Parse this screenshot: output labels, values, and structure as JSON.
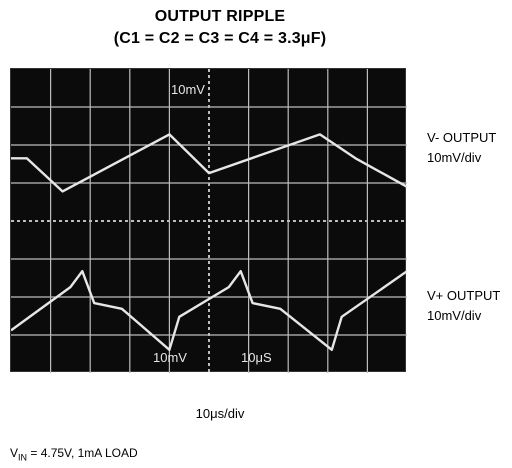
{
  "title_line1": "OUTPUT RIPPLE",
  "title_line2": "(C1 = C2 = C3 = C4 = 3.3μF)",
  "side_labels": {
    "v_neg_output": "V- OUTPUT",
    "v_neg_scale": "10mV/div",
    "v_pos_output": "V+ OUTPUT",
    "v_pos_scale": "10mV/div"
  },
  "x_scale": "10μs/div",
  "condition": {
    "v_prefix": "V",
    "v_sub": "IN",
    "rest": " = 4.75V, 1mA LOAD"
  },
  "chart_data": {
    "type": "line",
    "background": "#0b0b0b",
    "trace_color": "#e6e6e6",
    "grid": true,
    "grid_divisions": {
      "x": 10,
      "y": 8
    },
    "screen_annotations": [
      "10mV",
      "10mV",
      "10μS"
    ],
    "series": [
      {
        "name": "V- OUTPUT",
        "x_div": [
          0,
          0.4,
          1.3,
          4.0,
          5.0,
          7.8,
          8.7,
          10.0
        ],
        "y_div": [
          0.0,
          0.0,
          -1.45,
          1.05,
          -0.65,
          1.05,
          0.0,
          -1.25
        ]
      },
      {
        "name": "V+ OUTPUT",
        "x_div": [
          0,
          1.5,
          1.8,
          2.1,
          2.8,
          4.0,
          4.25,
          5.5,
          5.8,
          6.1,
          6.8,
          8.1,
          8.35,
          10.0
        ],
        "y_div": [
          -1.3,
          0.6,
          1.3,
          -0.1,
          -0.35,
          -2.15,
          -0.7,
          0.6,
          1.3,
          -0.1,
          -0.35,
          -2.15,
          -0.7,
          1.3
        ]
      }
    ]
  }
}
